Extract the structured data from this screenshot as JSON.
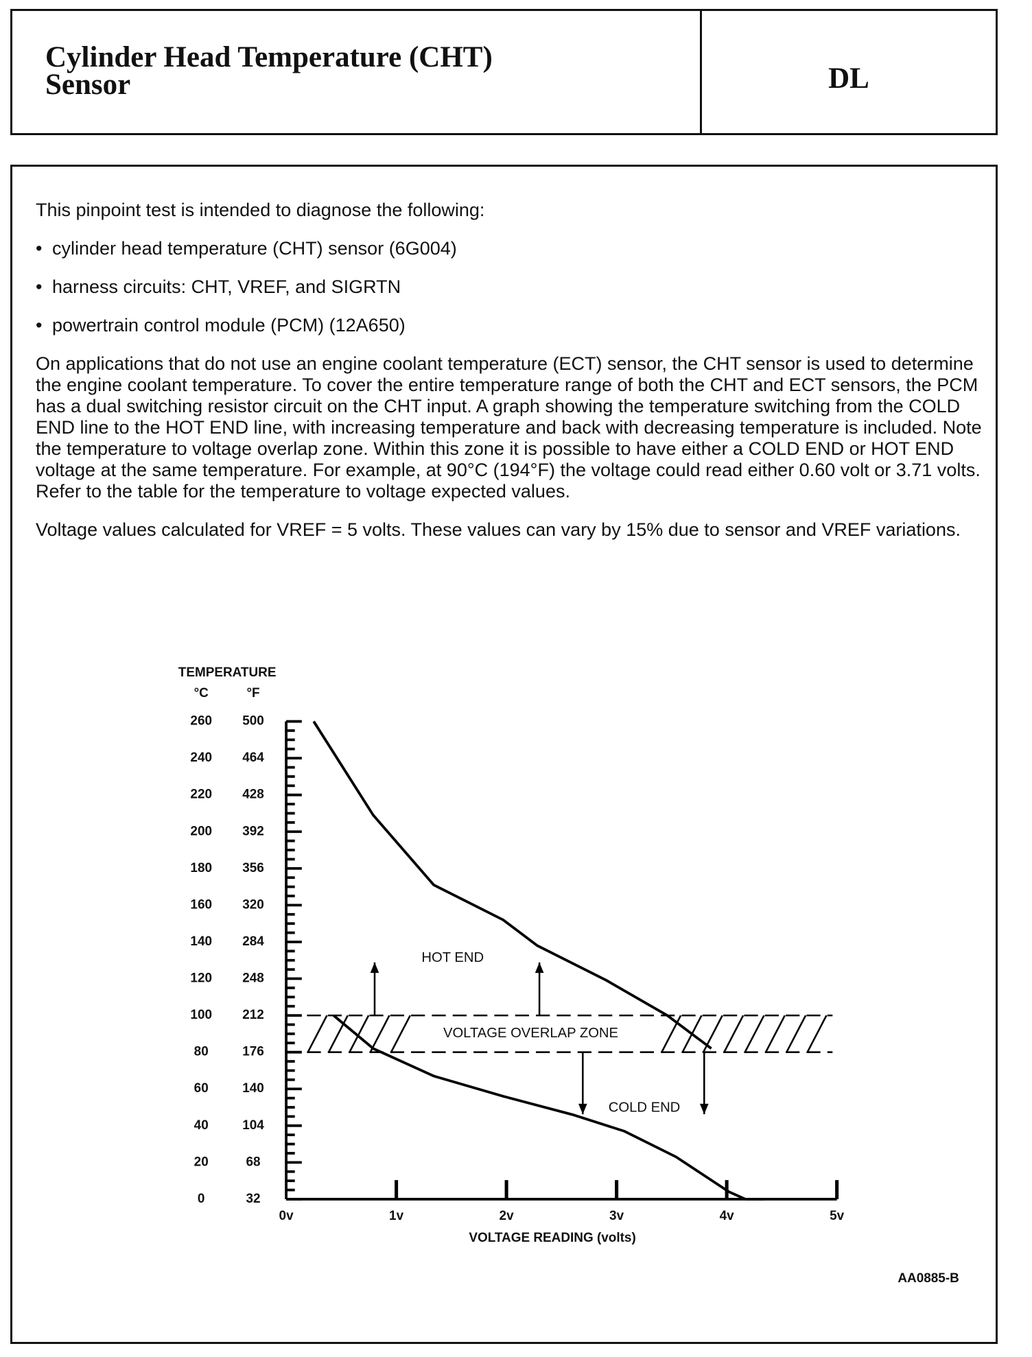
{
  "header": {
    "title_line1": "Cylinder Head Temperature (CHT)",
    "title_line2": "Sensor",
    "code": "DL"
  },
  "body": {
    "intro": "This pinpoint test is intended to diagnose the following:",
    "bullets": [
      "cylinder head temperature (CHT) sensor (6G004)",
      "harness circuits: CHT, VREF, and SIGRTN",
      "powertrain control module (PCM) (12A650)"
    ],
    "paragraphs": [
      "On applications that do not use an engine coolant temperature (ECT) sensor, the CHT sensor is used to determine the engine coolant temperature. To cover the entire temperature range of both the CHT and ECT sensors, the PCM has a dual switching resistor circuit on the CHT input. A graph showing the temperature switching from the COLD END line to the HOT END line, with increasing temperature and back with decreasing temperature is included. Note the temperature to voltage overlap zone. Within this zone it is possible to have either a COLD END or HOT END voltage at the same temperature. For example, at 90°C (194°F) the voltage could read either 0.60 volt or 3.71 volts. Refer to the table for the temperature to voltage expected values.",
      "Voltage values calculated for VREF = 5 volts. These values can vary by 15% due to sensor and VREF variations."
    ]
  },
  "chart_data": {
    "type": "line",
    "y_title": "TEMPERATURE",
    "y_unit": "°C",
    "y2_unit": "°F",
    "x_label": "VOLTAGE READING (volts)",
    "xlim": [
      0,
      5
    ],
    "xticks": [
      {
        "value": 0,
        "label": "0v"
      },
      {
        "value": 1,
        "label": "1v"
      },
      {
        "value": 2,
        "label": "2v"
      },
      {
        "value": 3,
        "label": "3v"
      },
      {
        "value": 4,
        "label": "4v"
      },
      {
        "value": 5,
        "label": "5v"
      }
    ],
    "ylim": [
      0,
      260
    ],
    "yticks": [
      0,
      20,
      40,
      60,
      80,
      100,
      120,
      140,
      160,
      180,
      200,
      220,
      240,
      260
    ],
    "y2lim": [
      32,
      500
    ],
    "y2ticks": [
      32,
      68,
      104,
      140,
      176,
      212,
      248,
      284,
      320,
      356,
      392,
      428,
      464,
      500
    ],
    "color": "#000000",
    "series": [
      {
        "name": "HOT END",
        "x": [
          0.25,
          0.79,
          1.34,
          1.97,
          2.28,
          2.91,
          3.46,
          3.86
        ],
        "values": [
          260,
          209,
          171,
          152,
          138,
          119,
          100,
          82
        ]
      },
      {
        "name": "COLD END",
        "x": [
          0.43,
          0.79,
          1.34,
          1.97,
          2.6,
          3.07,
          3.54,
          4.02,
          4.17
        ],
        "values": [
          100,
          82,
          67,
          56,
          46,
          37,
          23,
          4,
          0
        ]
      }
    ],
    "overlap_zone": {
      "label": "VOLTAGE OVERLAP ZONE",
      "range": [
        80,
        100
      ]
    },
    "figure_id": "AA0885-B"
  }
}
